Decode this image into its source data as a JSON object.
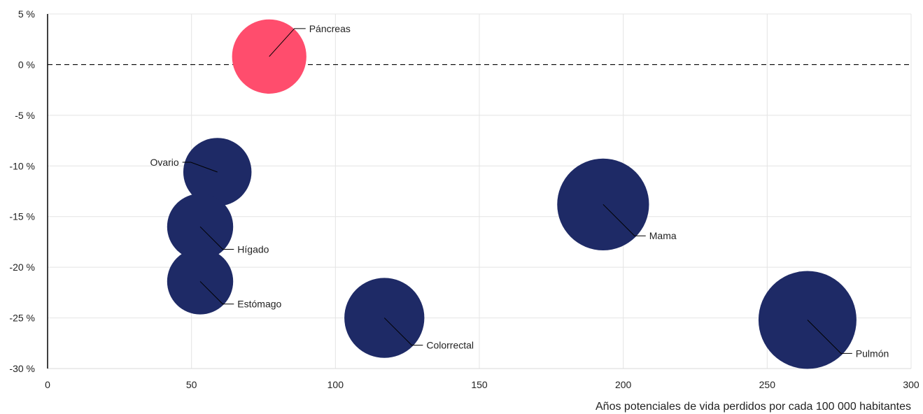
{
  "chart_data": {
    "type": "bubble",
    "title": "",
    "xlabel": "Años potenciales de vida perdidos por cada 100 000 habitantes",
    "ylabel": "",
    "xlim": [
      0,
      300
    ],
    "ylim": [
      -30,
      5
    ],
    "x_ticks": [
      0,
      50,
      100,
      150,
      200,
      250,
      300
    ],
    "x_tick_labels": [
      "0",
      "50",
      "100",
      "150",
      "200",
      "250",
      "300"
    ],
    "y_ticks": [
      5,
      0,
      -5,
      -10,
      -15,
      -20,
      -25,
      -30
    ],
    "y_tick_labels": [
      "5 %",
      "0 %",
      "-5 %",
      "-10 %",
      "-15 %",
      "-20 %",
      "-25 %",
      "-30 %"
    ],
    "grid": "vertical and horizontal",
    "reference_line_y": 0,
    "colors": {
      "decrease": "#1e2a66",
      "increase": "#ff4d6d"
    },
    "points": [
      {
        "label": "Páncreas",
        "x": 77,
        "y": 0.8,
        "size": 19,
        "color": "#ff4d6d",
        "label_side": "upper-right"
      },
      {
        "label": "Ovario",
        "x": 59,
        "y": -10.6,
        "size": 16,
        "color": "#1e2a66",
        "label_side": "upper-left"
      },
      {
        "label": "Hígado",
        "x": 53,
        "y": -16.0,
        "size": 15,
        "color": "#1e2a66",
        "label_side": "lower-right"
      },
      {
        "label": "Estómago",
        "x": 53,
        "y": -21.4,
        "size": 15,
        "color": "#1e2a66",
        "label_side": "lower-right"
      },
      {
        "label": "Colorrectal",
        "x": 117,
        "y": -25.0,
        "size": 22,
        "color": "#1e2a66",
        "label_side": "lower-right"
      },
      {
        "label": "Mama",
        "x": 193,
        "y": -13.8,
        "size": 29,
        "color": "#1e2a66",
        "label_side": "lower-right"
      },
      {
        "label": "Pulmón",
        "x": 264,
        "y": -25.2,
        "size": 33,
        "color": "#1e2a66",
        "label_side": "lower-right"
      }
    ]
  }
}
